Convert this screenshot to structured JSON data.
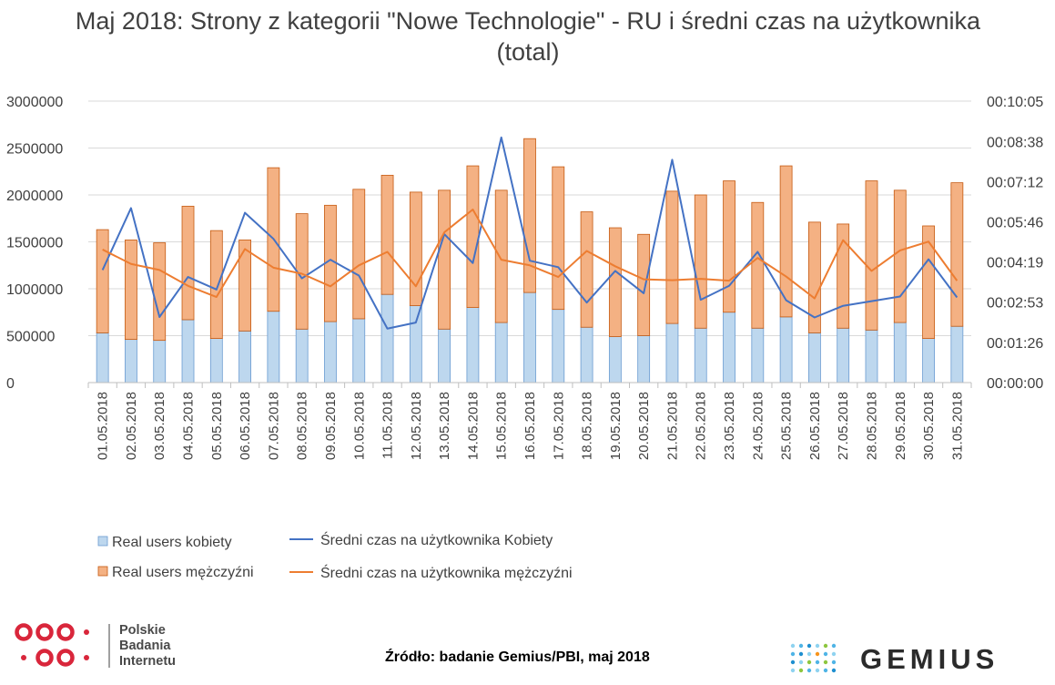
{
  "title": "Maj 2018: Strony z kategorii \"Nowe Technologie\" - RU i średni czas na użytkownika (total)",
  "source": "Źródło: badanie Gemius/PBI, maj 2018",
  "logos": {
    "pbi_text": [
      "Polskie",
      "Badania",
      "Internetu"
    ],
    "gemius_text": "GEMIUS"
  },
  "colors": {
    "women_bars": "#bdd7ee",
    "men_bars": "#f4b183",
    "bar_outline_women": "#6a9bd1",
    "bar_outline_men": "#c55a11",
    "line_women": "#4472c4",
    "line_men": "#ed7d31",
    "pbi_red": "#d9263b",
    "grid": "#d9d9d9"
  },
  "chart_data": {
    "type": "bar",
    "stacked": true,
    "categories": [
      "01.05.2018",
      "02.05.2018",
      "03.05.2018",
      "04.05.2018",
      "05.05.2018",
      "06.05.2018",
      "07.05.2018",
      "08.05.2018",
      "09.05.2018",
      "10.05.2018",
      "11.05.2018",
      "12.05.2018",
      "13.05.2018",
      "14.05.2018",
      "15.05.2018",
      "16.05.2018",
      "17.05.2018",
      "18.05.2018",
      "19.05.2018",
      "20.05.2018",
      "21.05.2018",
      "22.05.2018",
      "23.05.2018",
      "24.05.2018",
      "25.05.2018",
      "26.05.2018",
      "27.05.2018",
      "28.05.2018",
      "29.05.2018",
      "30.05.2018",
      "31.05.2018"
    ],
    "series": [
      {
        "name": "Real users kobiety",
        "type": "bar",
        "axis": "left",
        "values": [
          530000,
          460000,
          450000,
          670000,
          470000,
          550000,
          760000,
          570000,
          650000,
          680000,
          940000,
          820000,
          570000,
          800000,
          640000,
          960000,
          780000,
          590000,
          490000,
          500000,
          630000,
          580000,
          750000,
          580000,
          700000,
          530000,
          580000,
          560000,
          640000,
          470000,
          600000
        ]
      },
      {
        "name": "Real users mężczyźni",
        "type": "bar",
        "axis": "left",
        "values": [
          1100000,
          1060000,
          1040000,
          1210000,
          1150000,
          970000,
          1530000,
          1230000,
          1240000,
          1380000,
          1270000,
          1210000,
          1480000,
          1510000,
          1410000,
          1640000,
          1520000,
          1230000,
          1160000,
          1080000,
          1410000,
          1420000,
          1400000,
          1340000,
          1610000,
          1180000,
          1110000,
          1590000,
          1410000,
          1200000,
          1530000
        ]
      },
      {
        "name": "Średni czas na użytkownika Kobiety",
        "type": "line",
        "axis": "right",
        "values": [
          "00:04:02",
          "00:06:15",
          "00:02:21",
          "00:03:47",
          "00:03:20",
          "00:06:05",
          "00:05:09",
          "00:03:44",
          "00:04:24",
          "00:03:50",
          "00:01:56",
          "00:02:09",
          "00:05:19",
          "00:04:17",
          "00:08:47",
          "00:04:22",
          "00:04:08",
          "00:02:52",
          "00:04:00",
          "00:03:12",
          "00:07:59",
          "00:02:58",
          "00:03:28",
          "00:04:41",
          "00:02:57",
          "00:02:20",
          "00:02:45",
          "00:02:55",
          "00:03:05",
          "00:04:25",
          "00:03:03"
        ]
      },
      {
        "name": "Średni czas na użytkownika mężczyźni",
        "type": "line",
        "axis": "right",
        "values": [
          "00:04:46",
          "00:04:15",
          "00:04:02",
          "00:03:28",
          "00:03:04",
          "00:04:47",
          "00:04:07",
          "00:03:54",
          "00:03:27",
          "00:04:12",
          "00:04:41",
          "00:03:27",
          "00:05:23",
          "00:06:12",
          "00:04:24",
          "00:04:12",
          "00:03:47",
          "00:04:43",
          "00:04:10",
          "00:03:42",
          "00:03:40",
          "00:03:43",
          "00:03:39",
          "00:04:28",
          "00:03:48",
          "00:03:01",
          "00:05:06",
          "00:04:00",
          "00:04:44",
          "00:05:03",
          "00:03:39"
        ]
      }
    ],
    "ylim": [
      0,
      3000000
    ],
    "yticks": [
      "0",
      "500000",
      "1000000",
      "1500000",
      "2000000",
      "2500000",
      "3000000"
    ],
    "y2lim": [
      "00:00:00",
      "00:10:05"
    ],
    "y2ticks": [
      "00:00:00",
      "00:01:26",
      "00:02:53",
      "00:04:19",
      "00:05:46",
      "00:07:12",
      "00:08:38",
      "00:10:05"
    ],
    "grid": true,
    "legend_position": "bottom-left"
  }
}
